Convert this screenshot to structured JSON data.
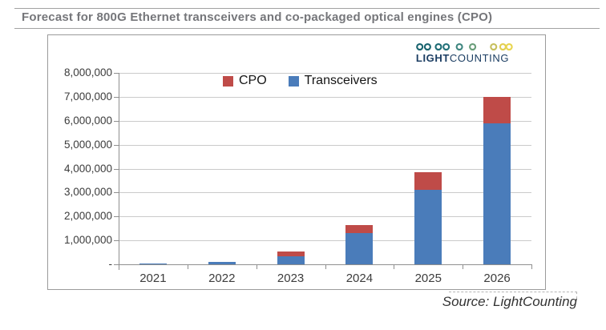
{
  "header": {
    "title": "Forecast for 800G Ethernet transceivers and co-packaged optical engines (CPO)"
  },
  "branding": {
    "logo_light": "LIGHT",
    "logo_counting": "COUNTING"
  },
  "footer": {
    "source": "Source: LightCounting"
  },
  "chart_data": {
    "type": "bar",
    "stacked": true,
    "title": "Forecast for 800G Ethernet transceivers and co-packaged optical engines (CPO)",
    "categories": [
      "2021",
      "2022",
      "2023",
      "2024",
      "2025",
      "2026"
    ],
    "series": [
      {
        "name": "Transceivers",
        "color": "#4a7cba",
        "values": [
          40000,
          100000,
          350000,
          1300000,
          3100000,
          5900000
        ]
      },
      {
        "name": "CPO",
        "color": "#bf4b48",
        "values": [
          0,
          0,
          200000,
          350000,
          750000,
          1100000
        ]
      }
    ],
    "legend": [
      {
        "label": "CPO",
        "color": "#bf4b48"
      },
      {
        "label": "Transceivers",
        "color": "#4a7cba"
      }
    ],
    "legend_position": "top-center",
    "grid": true,
    "xlabel": "",
    "ylabel": "",
    "ylim": [
      0,
      8000000
    ],
    "ytick_interval": 1000000,
    "ytick_labels": [
      "-",
      "1,000,000",
      "2,000,000",
      "3,000,000",
      "4,000,000",
      "5,000,000",
      "6,000,000",
      "7,000,000",
      "8,000,000"
    ]
  }
}
